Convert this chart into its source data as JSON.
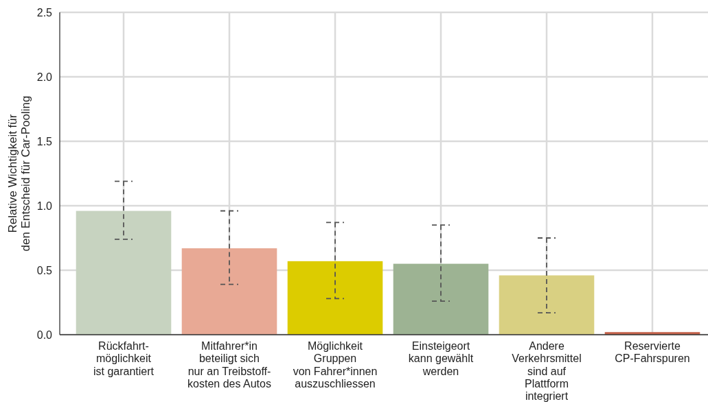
{
  "chart_data": {
    "type": "bar",
    "ylabel": "Relative Wichtigkeit für\nden Entscheid für Car-Pooling",
    "categories": [
      "Rückfahrt-\nmöglichkeit\nist garantiert",
      "Mitfahrer*in\nbeteiligt sich\nnur an Treibstoff-\nkosten des Autos",
      "Möglichkeit\nGruppen\nvon Fahrer*innen\nauszuschliessen",
      "Einsteigeort\nkann gewählt\nwerden",
      "Andere\nVerkehrsmittel\nsind auf\nPlattform\nintegriert",
      "Reservierte\nCP-Fahrspuren"
    ],
    "values": [
      0.96,
      0.67,
      0.57,
      0.55,
      0.46,
      0.02
    ],
    "colors": [
      "#c7d3c0",
      "#e8a995",
      "#dccc00",
      "#9db393",
      "#d9d082",
      "#c4634c"
    ],
    "errors": [
      [
        0.74,
        1.19
      ],
      [
        0.39,
        0.96
      ],
      [
        0.28,
        0.87
      ],
      [
        0.26,
        0.85
      ],
      [
        0.17,
        0.75
      ],
      null
    ],
    "ylim": [
      0,
      2.5
    ],
    "yticks": [
      {
        "value": 0,
        "label": "0.0"
      },
      0.5,
      {
        "value": 1,
        "label": "1.0"
      },
      1.5,
      {
        "value": 2,
        "label": "2.0"
      },
      2.5
    ],
    "grid": true
  }
}
